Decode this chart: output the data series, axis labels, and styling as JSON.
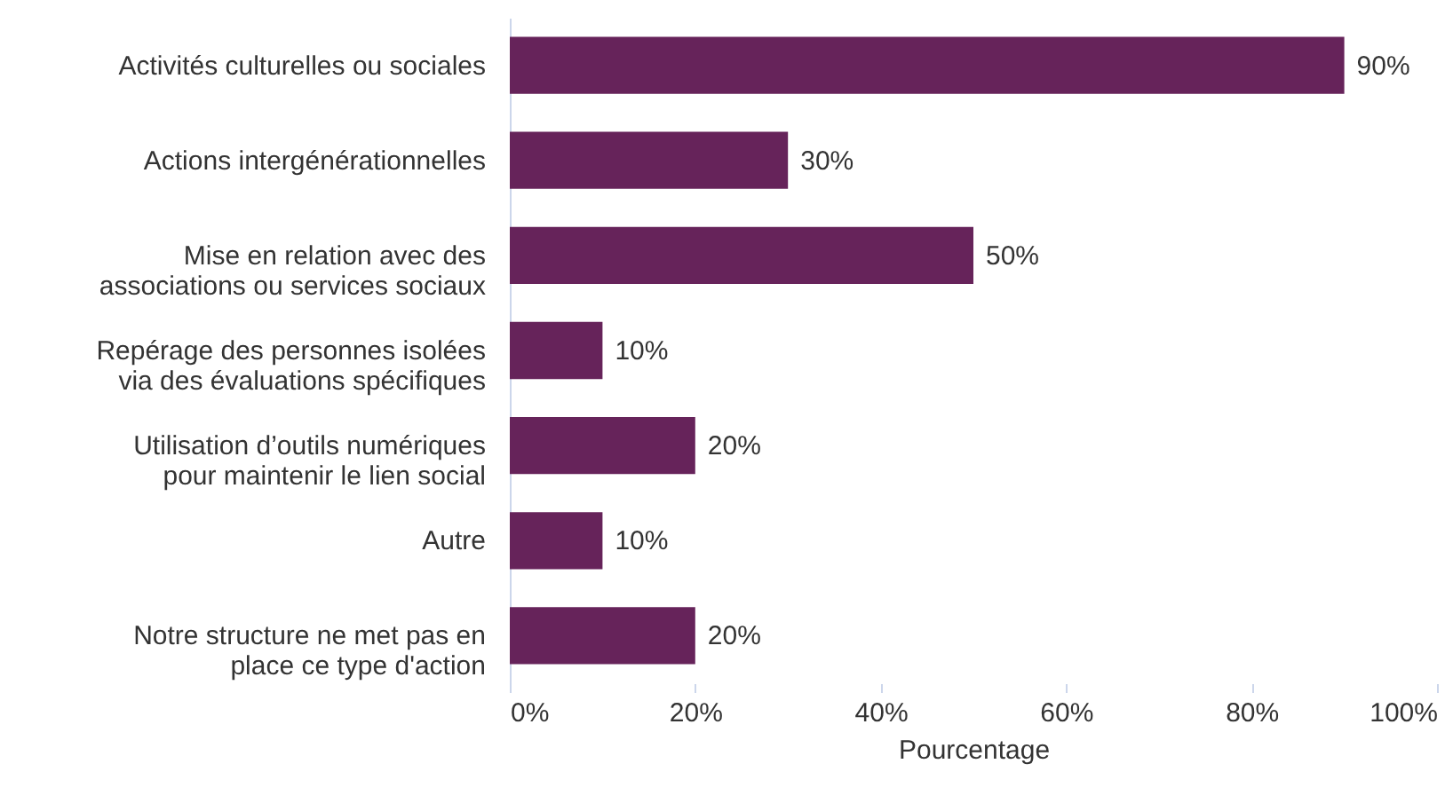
{
  "chart_data": {
    "type": "bar",
    "orientation": "horizontal",
    "xlabel": "Pourcentage",
    "categories": [
      "Activités culturelles ou sociales",
      "Actions intergénérationnelles",
      "Mise en relation avec des associations ou services sociaux",
      "Repérage des personnes isolées via des évaluations spécifiques",
      "Utilisation d’outils numériques pour maintenir le lien social",
      "Autre",
      "Notre structure ne met pas en place ce type d'action"
    ],
    "values": [
      90,
      30,
      50,
      10,
      20,
      10,
      20
    ],
    "value_labels": [
      "90%",
      "30%",
      "50%",
      "10%",
      "20%",
      "10%",
      "20%"
    ],
    "color": "#66235a",
    "xlim": [
      0,
      100
    ],
    "xticks": [
      {
        "value": 0,
        "label": "0%"
      },
      {
        "value": 20,
        "label": "20%"
      },
      {
        "value": 40,
        "label": "40%"
      },
      {
        "value": 60,
        "label": "60%"
      },
      {
        "value": 80,
        "label": "80%"
      },
      {
        "value": 100,
        "label": "100%"
      }
    ],
    "grid": false
  }
}
